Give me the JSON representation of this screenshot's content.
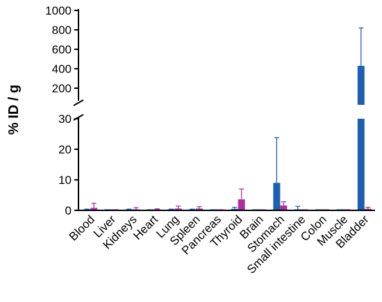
{
  "chart_data": {
    "type": "bar",
    "ylabel": "% ID / g",
    "y_axis_break": {
      "lower_range": [
        0,
        30
      ],
      "upper_range": [
        100,
        1000
      ],
      "lower_ticks": [
        0,
        10,
        20,
        30
      ],
      "upper_ticks": [
        200,
        400,
        600,
        800,
        1000
      ]
    },
    "categories": [
      "Blood",
      "Liver",
      "Kidneys",
      "Heart",
      "Lung",
      "Spleen",
      "Pancreas",
      "Thyroid",
      "Brain",
      "Stomach",
      "Small intestine",
      "Colon",
      "Muscle",
      "Bladder"
    ],
    "series": [
      {
        "color": "#1f5fad",
        "values": [
          0.2,
          0.1,
          0.2,
          0.1,
          0.2,
          0.2,
          0.1,
          0.5,
          0.1,
          9.0,
          0.3,
          0.1,
          0.1,
          430
        ],
        "errors": [
          0.2,
          0.1,
          0.2,
          0.1,
          0.2,
          0.2,
          0.1,
          0.5,
          0.1,
          14.8,
          1.0,
          0.1,
          0.1,
          390
        ]
      },
      {
        "color": "#a8319e",
        "values": [
          0.8,
          0.1,
          0.3,
          0.2,
          0.6,
          0.6,
          0.1,
          3.6,
          0.1,
          1.6,
          0.1,
          0.1,
          0.1,
          0.5
        ],
        "errors": [
          1.5,
          0.1,
          0.6,
          0.3,
          0.8,
          0.6,
          0.1,
          3.4,
          0.1,
          1.2,
          0.1,
          0.1,
          0.1,
          0.5
        ]
      }
    ]
  }
}
